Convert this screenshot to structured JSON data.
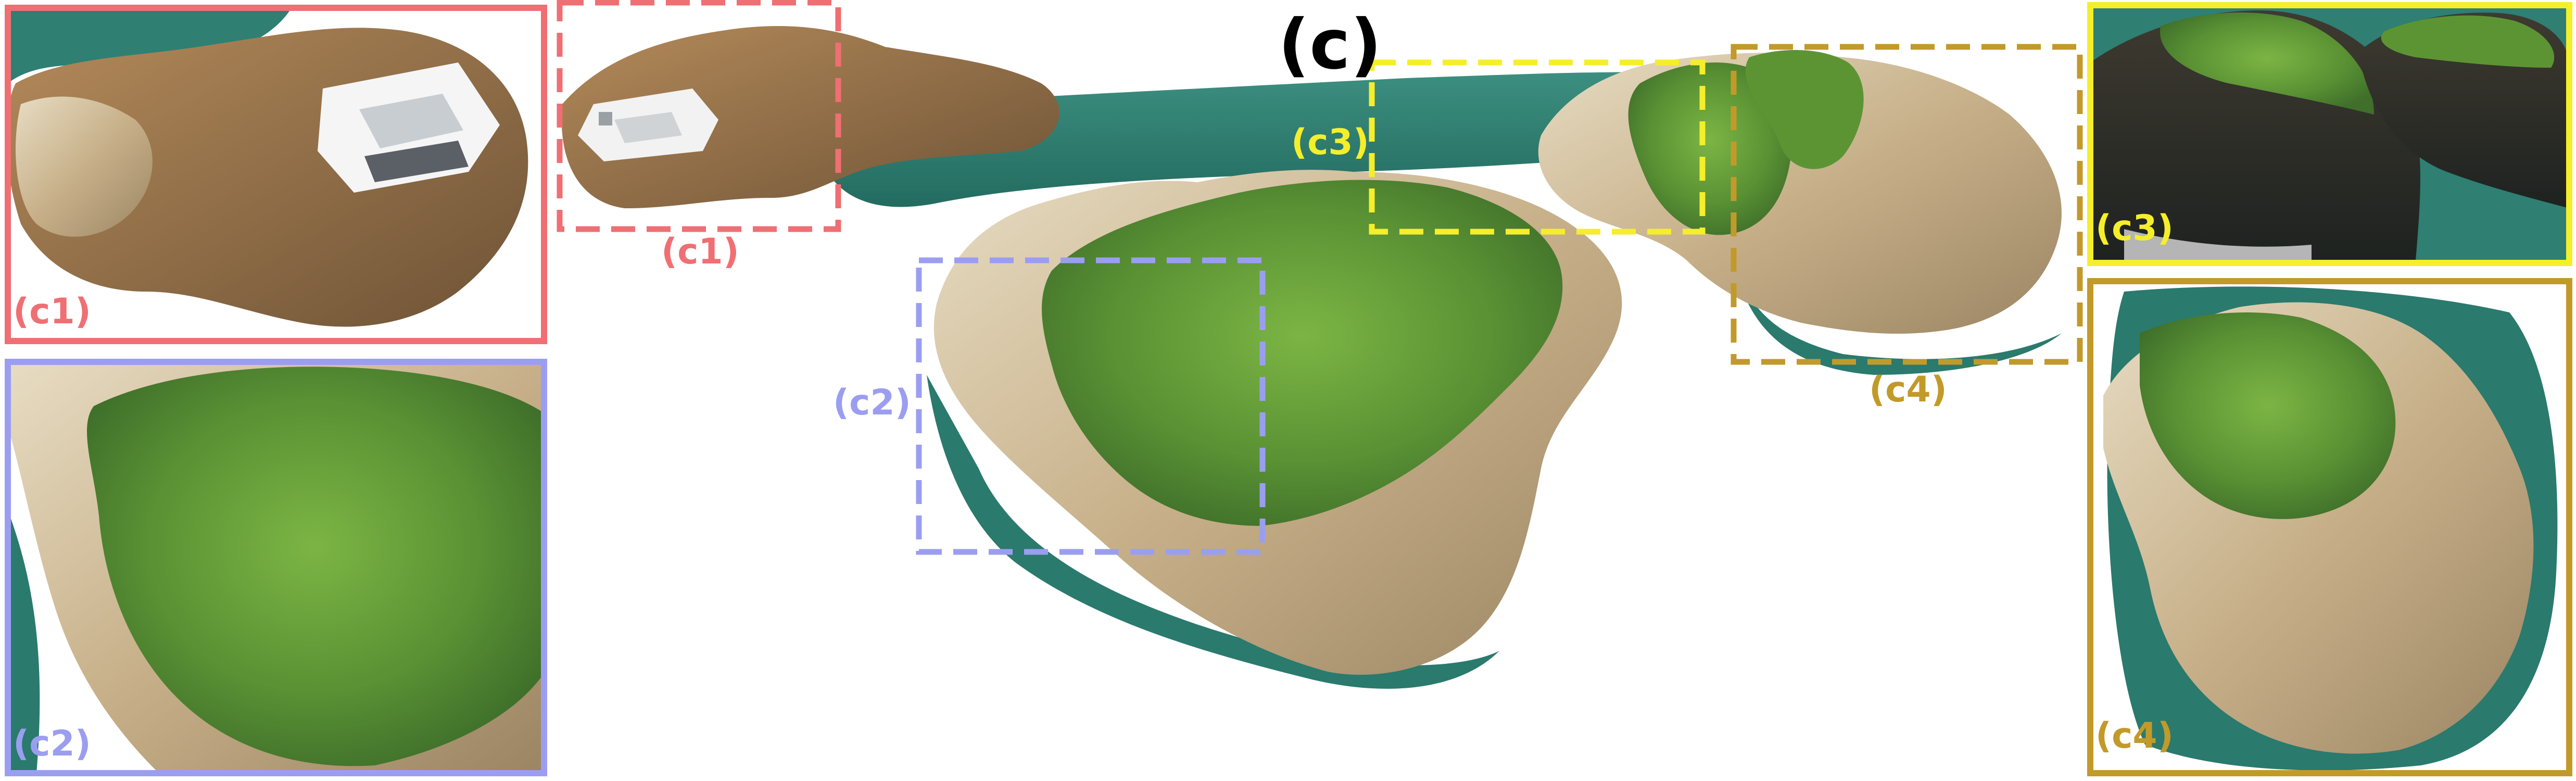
{
  "figure": {
    "title": "(c)",
    "colors": {
      "c1": "#ef6f73",
      "c2": "#9b9ef0",
      "c3": "#f5ee2b",
      "c4": "#c29a2a",
      "sea": "#2f7f72",
      "vegetation": "#5f9a38",
      "rock": "#c9b48e"
    },
    "regions": [
      {
        "id": "c1",
        "label": "(c1)"
      },
      {
        "id": "c2",
        "label": "(c2)"
      },
      {
        "id": "c3",
        "label": "(c3)"
      },
      {
        "id": "c4",
        "label": "(c4)"
      }
    ],
    "insets": [
      {
        "id": "c1",
        "label": "(c1)",
        "content": "building-on-rocky-outcrop"
      },
      {
        "id": "c2",
        "label": "(c2)",
        "content": "vegetated-slope"
      },
      {
        "id": "c3",
        "label": "(c3)",
        "content": "sea-cliff-perspective"
      },
      {
        "id": "c4",
        "label": "(c4)",
        "content": "rocky-headland-top-view"
      }
    ]
  }
}
